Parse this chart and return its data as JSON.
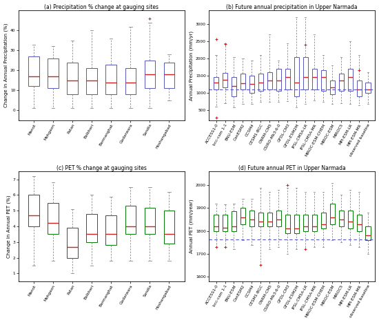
{
  "panel_a": {
    "title": "(a) Precipitation % change at gauging sites",
    "ylabel": "Change in Annual Precipitation (%)",
    "categories": [
      "Manot",
      "Mohgaon",
      "Patan",
      "Belkheri",
      "Barmanghat",
      "Gadarwara",
      "Sandia",
      "Hoshangabad"
    ],
    "box_color": "#5555bb",
    "median_color": "#cc2222",
    "ylim": [
      -5,
      50
    ],
    "yticks": [
      0,
      10,
      20,
      30,
      40
    ],
    "boxes": [
      {
        "q1": 12,
        "median": 17,
        "q3": 27,
        "whislo": 1,
        "whishi": 33,
        "fliers": []
      },
      {
        "q1": 11,
        "median": 17,
        "q3": 26,
        "whislo": 1,
        "whishi": 32,
        "fliers": []
      },
      {
        "q1": 8,
        "median": 15,
        "q3": 24,
        "whislo": 1,
        "whishi": 35,
        "fliers": []
      },
      {
        "q1": 8,
        "median": 15,
        "q3": 21,
        "whislo": 1,
        "whishi": 40,
        "fliers": []
      },
      {
        "q1": 8,
        "median": 14,
        "q3": 23,
        "whislo": 1,
        "whishi": 36,
        "fliers": []
      },
      {
        "q1": 8,
        "median": 14,
        "q3": 21,
        "whislo": 1,
        "whishi": 42,
        "fliers": []
      },
      {
        "q1": 11,
        "median": 18,
        "q3": 25,
        "whislo": 1,
        "whishi": 44,
        "fliers": [
          46
        ]
      },
      {
        "q1": 11,
        "median": 18,
        "q3": 24,
        "whislo": 5,
        "whishi": 28,
        "fliers": []
      }
    ]
  },
  "panel_b": {
    "title": "(b) Future annual precipitation in Upper Narmada",
    "ylabel": "Annual Precipitation (mm/yr)",
    "categories": [
      "ACCESS1-0",
      "bcc-csm 1-1",
      "BNU-ESM",
      "CanESM2",
      "CCSM4",
      "CESM1-BGC",
      "CNRM-CM5",
      "CSIRO-Mk3-6-0",
      "GFDL-CM3",
      "GFDL-ESM2M",
      "IPSL-CM5A-LR",
      "IPSL-CM5A-MR",
      "MIROC-ESM-CHEM",
      "MIROC-ESM",
      "MIROC5",
      "MPI-ESM-LR",
      "MPI-ESM-MR",
      "observed baseline"
    ],
    "box_color": "#5555bb",
    "median_color": "#cc2222",
    "baseline_color": "#5555cc",
    "baseline_value": 1100,
    "ylim": [
      200,
      3400
    ],
    "yticks": [
      500,
      1000,
      1500,
      2000,
      2500,
      3000
    ],
    "boxes": [
      {
        "q1": 1100,
        "median": 1300,
        "q3": 1450,
        "whislo": 600,
        "whishi": 2100,
        "fliers": [
          280,
          2560
        ]
      },
      {
        "q1": 1150,
        "median": 1380,
        "q3": 1580,
        "whislo": 700,
        "whishi": 2450,
        "fliers": [
          2420
        ]
      },
      {
        "q1": 900,
        "median": 1200,
        "q3": 1450,
        "whislo": 580,
        "whishi": 2050,
        "fliers": []
      },
      {
        "q1": 1100,
        "median": 1280,
        "q3": 1560,
        "whislo": 680,
        "whishi": 2000,
        "fliers": []
      },
      {
        "q1": 1000,
        "median": 1250,
        "q3": 1500,
        "whislo": 680,
        "whishi": 1950,
        "fliers": []
      },
      {
        "q1": 1050,
        "median": 1300,
        "q3": 1550,
        "whislo": 730,
        "whishi": 2100,
        "fliers": []
      },
      {
        "q1": 1100,
        "median": 1350,
        "q3": 1600,
        "whislo": 740,
        "whishi": 2700,
        "fliers": []
      },
      {
        "q1": 1050,
        "median": 1350,
        "q3": 1700,
        "whislo": 740,
        "whishi": 1950,
        "fliers": []
      },
      {
        "q1": 1100,
        "median": 1450,
        "q3": 1700,
        "whislo": 750,
        "whishi": 2450,
        "fliers": []
      },
      {
        "q1": 900,
        "median": 1300,
        "q3": 2050,
        "whislo": 580,
        "whishi": 3200,
        "fliers": []
      },
      {
        "q1": 1100,
        "median": 1450,
        "q3": 2050,
        "whislo": 680,
        "whishi": 3200,
        "fliers": [
          2400
        ]
      },
      {
        "q1": 1100,
        "median": 1450,
        "q3": 1700,
        "whislo": 780,
        "whishi": 2700,
        "fliers": []
      },
      {
        "q1": 1050,
        "median": 1450,
        "q3": 1650,
        "whislo": 740,
        "whishi": 2100,
        "fliers": []
      },
      {
        "q1": 950,
        "median": 1150,
        "q3": 1350,
        "whislo": 680,
        "whishi": 1800,
        "fliers": []
      },
      {
        "q1": 1050,
        "median": 1350,
        "q3": 1550,
        "whislo": 690,
        "whishi": 2050,
        "fliers": []
      },
      {
        "q1": 1050,
        "median": 1450,
        "q3": 1700,
        "whislo": 680,
        "whishi": 2500,
        "fliers": []
      },
      {
        "q1": 900,
        "median": 1100,
        "q3": 1350,
        "whislo": 640,
        "whishi": 2100,
        "fliers": [
          1660
        ]
      },
      {
        "q1": 1000,
        "median": 1100,
        "q3": 1300,
        "whislo": 680,
        "whishi": 1600,
        "fliers": []
      }
    ]
  },
  "panel_c": {
    "title": "(c) PET % change at gauging sites",
    "ylabel": "Change in Annual PET (%)",
    "categories": [
      "Manot",
      "Mohgaon",
      "Patan",
      "Belkheri",
      "Barmanghat",
      "Gadarwara",
      "Sandia",
      "Hoshangabad"
    ],
    "box_color": "#007700",
    "median_color": "#cc2222",
    "ylim": [
      0.5,
      7.5
    ],
    "yticks": [
      1,
      2,
      3,
      4,
      5,
      6,
      7
    ],
    "boxes": [
      {
        "q1": 4.0,
        "median": 4.7,
        "q3": 6.0,
        "whislo": 1.5,
        "whishi": 7.2,
        "fliers": []
      },
      {
        "q1": 3.5,
        "median": 4.2,
        "q3": 5.5,
        "whislo": 1.8,
        "whishi": 6.8,
        "fliers": []
      },
      {
        "q1": 2.0,
        "median": 2.7,
        "q3": 3.9,
        "whislo": 1.0,
        "whishi": 5.1,
        "fliers": []
      },
      {
        "q1": 3.0,
        "median": 3.5,
        "q3": 4.8,
        "whislo": 1.5,
        "whishi": 6.0,
        "fliers": []
      },
      {
        "q1": 2.8,
        "median": 3.5,
        "q3": 4.7,
        "whislo": 1.8,
        "whishi": 5.9,
        "fliers": []
      },
      {
        "q1": 3.5,
        "median": 4.0,
        "q3": 5.3,
        "whislo": 1.8,
        "whishi": 6.5,
        "fliers": []
      },
      {
        "q1": 3.5,
        "median": 4.0,
        "q3": 5.2,
        "whislo": 1.8,
        "whishi": 6.5,
        "fliers": []
      },
      {
        "q1": 2.9,
        "median": 3.5,
        "q3": 5.0,
        "whislo": 1.8,
        "whishi": 6.2,
        "fliers": []
      }
    ]
  },
  "panel_d": {
    "title": "(d) Future annual PET in Upper Narmada",
    "ylabel": "Annual PET (mm/year)",
    "categories": [
      "ACCESS1-0",
      "bcc-csm 1-1",
      "BNU-ESM",
      "CanESM2",
      "CCSM4",
      "CESM1-BGC",
      "CNRM-CM5",
      "CSIRO-Mk3-6-0",
      "GFDL-CM3",
      "GFDL-ESM2M",
      "IPSL-CM5A-LR",
      "IPSL-CM5A-MR",
      "MIROC-ESM-CHEM",
      "MIROC-ESM",
      "MIROC5",
      "MPI-ESM-LR",
      "MPI-ESM-MR",
      "observed baseline"
    ],
    "box_color": "#007700",
    "median_color": "#cc2222",
    "baseline_color": "#5555cc",
    "baseline_value": 1762,
    "ylim": [
      1580,
      2060
    ],
    "yticks": [
      1600,
      1700,
      1800,
      1900,
      2000
    ],
    "boxes": [
      {
        "q1": 1800,
        "median": 1820,
        "q3": 1870,
        "whislo": 1730,
        "whishi": 1920,
        "fliers": [
          1730
        ]
      },
      {
        "q1": 1800,
        "median": 1815,
        "q3": 1870,
        "whislo": 1730,
        "whishi": 1915,
        "fliers": [
          1730
        ]
      },
      {
        "q1": 1800,
        "median": 1820,
        "q3": 1885,
        "whislo": 1720,
        "whishi": 1920,
        "fliers": []
      },
      {
        "q1": 1830,
        "median": 1860,
        "q3": 1900,
        "whislo": 1760,
        "whishi": 1940,
        "fliers": []
      },
      {
        "q1": 1820,
        "median": 1850,
        "q3": 1890,
        "whislo": 1740,
        "whishi": 1940,
        "fliers": []
      },
      {
        "q1": 1820,
        "median": 1840,
        "q3": 1880,
        "whislo": 1650,
        "whishi": 1990,
        "fliers": [
          1650
        ]
      },
      {
        "q1": 1820,
        "median": 1840,
        "q3": 1880,
        "whislo": 1720,
        "whishi": 1970,
        "fliers": []
      },
      {
        "q1": 1820,
        "median": 1850,
        "q3": 1890,
        "whislo": 1730,
        "whishi": 1980,
        "fliers": []
      },
      {
        "q1": 1790,
        "median": 1810,
        "q3": 1870,
        "whislo": 1700,
        "whishi": 1990,
        "fliers": [
          2000
        ]
      },
      {
        "q1": 1790,
        "median": 1810,
        "q3": 1870,
        "whislo": 1720,
        "whishi": 1990,
        "fliers": []
      },
      {
        "q1": 1800,
        "median": 1820,
        "q3": 1870,
        "whislo": 1720,
        "whishi": 1970,
        "fliers": [
          1720
        ]
      },
      {
        "q1": 1800,
        "median": 1820,
        "q3": 1870,
        "whislo": 1730,
        "whishi": 1970,
        "fliers": []
      },
      {
        "q1": 1810,
        "median": 1830,
        "q3": 1880,
        "whislo": 1730,
        "whishi": 1970,
        "fliers": []
      },
      {
        "q1": 1830,
        "median": 1860,
        "q3": 1920,
        "whislo": 1760,
        "whishi": 2010,
        "fliers": []
      },
      {
        "q1": 1820,
        "median": 1850,
        "q3": 1890,
        "whislo": 1750,
        "whishi": 1960,
        "fliers": []
      },
      {
        "q1": 1810,
        "median": 1840,
        "q3": 1890,
        "whislo": 1740,
        "whishi": 1980,
        "fliers": []
      },
      {
        "q1": 1800,
        "median": 1830,
        "q3": 1870,
        "whislo": 1730,
        "whishi": 1970,
        "fliers": []
      },
      {
        "q1": 1760,
        "median": 1780,
        "q3": 1820,
        "whislo": 1700,
        "whishi": 1880,
        "fliers": []
      }
    ]
  }
}
